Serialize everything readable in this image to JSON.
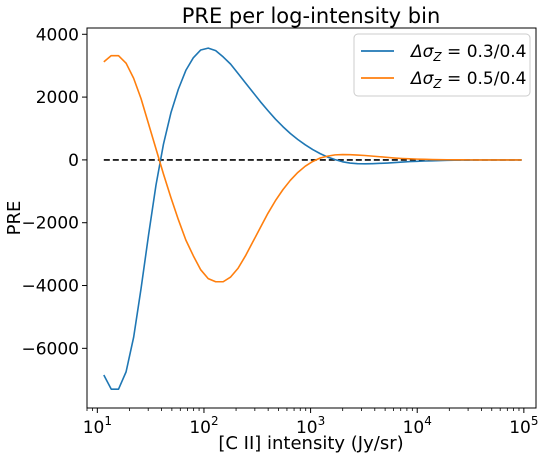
{
  "chart_data": {
    "type": "line",
    "title": "PRE per log-intensity bin",
    "xlabel": "[C II] intensity (Jy/sr)",
    "ylabel": "PRE",
    "x_scale": "log",
    "xlim": [
      8,
      130000
    ],
    "ylim": [
      -7900,
      4200
    ],
    "xticks": [
      {
        "value": 10,
        "base": "10",
        "exp": "1"
      },
      {
        "value": 100,
        "base": "10",
        "exp": "2"
      },
      {
        "value": 1000,
        "base": "10",
        "exp": "3"
      },
      {
        "value": 10000,
        "base": "10",
        "exp": "4"
      },
      {
        "value": 100000,
        "base": "10",
        "exp": "5"
      }
    ],
    "yticks": [
      {
        "value": -6000,
        "label": "−6000"
      },
      {
        "value": -4000,
        "label": "−4000"
      },
      {
        "value": -2000,
        "label": "−2000"
      },
      {
        "value": 0,
        "label": "0"
      },
      {
        "value": 2000,
        "label": "2000"
      },
      {
        "value": 4000,
        "label": "4000"
      }
    ],
    "legend_position": "top-right",
    "zero_line": {
      "y": 0,
      "style": "dashed",
      "color": "#000000",
      "x_from": 11.5,
      "x_to": 95000
    },
    "series": [
      {
        "name_symbol": "Δσ",
        "name_sub": "Z",
        "name_suffix": " = 0.3/0.4",
        "color": "#1f77b4",
        "x": [
          11.5,
          13.5,
          15.8,
          18.6,
          21.9,
          25.7,
          30.2,
          35.5,
          41.7,
          49,
          57.5,
          67.6,
          79.4,
          93.3,
          109.6,
          128.8,
          151.4,
          177.8,
          208.9,
          245.5,
          288.4,
          338.8,
          398.1,
          467.7,
          549.5,
          645.7,
          758.6,
          891.3,
          1047,
          1230,
          1445,
          1698,
          1995,
          2344,
          2754,
          3236,
          3802,
          4467,
          5248,
          6166,
          7244,
          8511,
          10000,
          11750,
          13800,
          16220,
          19050,
          22390,
          26300,
          30900,
          36310,
          42660,
          50120,
          58880,
          69180,
          81280,
          95500
        ],
        "y": [
          -6850,
          -7300,
          -7300,
          -6750,
          -5650,
          -4100,
          -2400,
          -800,
          500,
          1500,
          2250,
          2850,
          3250,
          3500,
          3560,
          3480,
          3280,
          3050,
          2750,
          2450,
          2150,
          1850,
          1570,
          1300,
          1060,
          840,
          650,
          480,
          330,
          200,
          90,
          10,
          -60,
          -100,
          -120,
          -125,
          -120,
          -110,
          -100,
          -85,
          -70,
          -55,
          -45,
          -35,
          -28,
          -20,
          -15,
          -10,
          -7,
          -5,
          -3,
          -2,
          -1,
          0,
          0,
          0,
          0
        ]
      },
      {
        "name_symbol": "Δσ",
        "name_sub": "Z",
        "name_suffix": " = 0.5/0.4",
        "color": "#ff7f0e",
        "x": [
          11.5,
          13.5,
          15.8,
          18.6,
          21.9,
          25.7,
          30.2,
          35.5,
          41.7,
          49,
          57.5,
          67.6,
          79.4,
          93.3,
          109.6,
          128.8,
          151.4,
          177.8,
          208.9,
          245.5,
          288.4,
          338.8,
          398.1,
          467.7,
          549.5,
          645.7,
          758.6,
          891.3,
          1047,
          1230,
          1445,
          1698,
          1995,
          2344,
          2754,
          3236,
          3802,
          4467,
          5248,
          6166,
          7244,
          8511,
          10000,
          11750,
          13800,
          16220,
          19050,
          22390,
          26300,
          30900,
          36310,
          42660,
          50120,
          58880,
          69180,
          81280,
          95500
        ],
        "y": [
          3120,
          3320,
          3320,
          3080,
          2600,
          1950,
          1150,
          350,
          -450,
          -1200,
          -1900,
          -2550,
          -3050,
          -3500,
          -3780,
          -3880,
          -3880,
          -3730,
          -3450,
          -3050,
          -2600,
          -2150,
          -1700,
          -1300,
          -950,
          -650,
          -400,
          -200,
          -50,
          60,
          120,
          160,
          170,
          165,
          155,
          140,
          120,
          100,
          80,
          60,
          45,
          35,
          25,
          18,
          12,
          8,
          5,
          3,
          2,
          1,
          0,
          0,
          0,
          0,
          0,
          0,
          0
        ]
      }
    ]
  }
}
